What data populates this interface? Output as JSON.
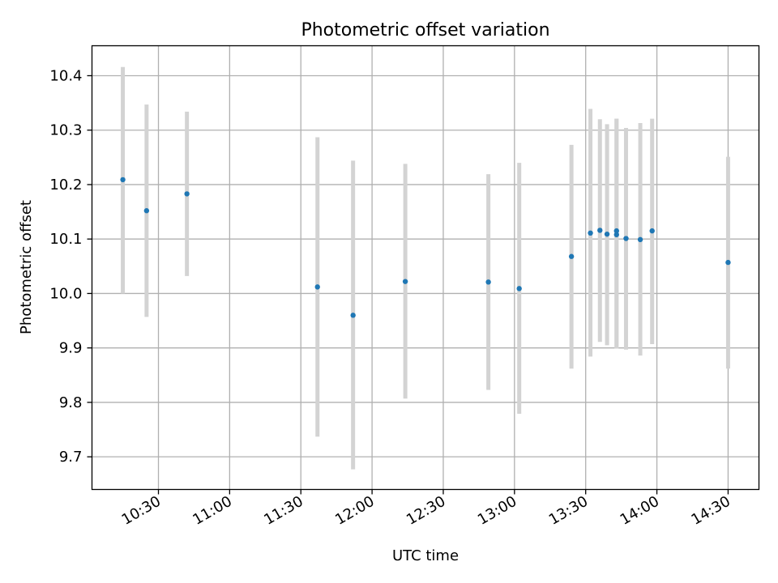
{
  "chart_data": {
    "type": "scatter",
    "title": "Photometric offset variation",
    "xlabel": "UTC time",
    "ylabel": "Photometric offset",
    "x_axis_type": "time",
    "xlim": [
      "10:02",
      "14:43"
    ],
    "ylim": [
      9.64,
      10.455
    ],
    "x_ticks": [
      "10:30",
      "11:00",
      "11:30",
      "12:00",
      "12:30",
      "13:00",
      "13:30",
      "14:00",
      "14:30"
    ],
    "y_ticks": [
      9.7,
      9.8,
      9.9,
      10.0,
      10.1,
      10.2,
      10.3,
      10.4
    ],
    "y_tick_labels": [
      "9.7",
      "9.8",
      "9.9",
      "10.0",
      "10.1",
      "10.2",
      "10.3",
      "10.4"
    ],
    "grid": true,
    "colors": {
      "marker": "#1f77b4",
      "errorbar": "#d3d3d3",
      "grid": "#b0b0b0"
    },
    "points": [
      {
        "time": "10:15",
        "y": 10.209,
        "y_low": 10.0,
        "y_high": 10.416
      },
      {
        "time": "10:25",
        "y": 10.152,
        "y_low": 9.957,
        "y_high": 10.347
      },
      {
        "time": "10:42",
        "y": 10.183,
        "y_low": 10.032,
        "y_high": 10.334
      },
      {
        "time": "11:37",
        "y": 10.012,
        "y_low": 9.737,
        "y_high": 10.287
      },
      {
        "time": "11:52",
        "y": 9.96,
        "y_low": 9.677,
        "y_high": 10.244
      },
      {
        "time": "12:14",
        "y": 10.022,
        "y_low": 9.807,
        "y_high": 10.238
      },
      {
        "time": "12:49",
        "y": 10.021,
        "y_low": 9.823,
        "y_high": 10.219
      },
      {
        "time": "13:02",
        "y": 10.009,
        "y_low": 9.779,
        "y_high": 10.24
      },
      {
        "time": "13:24",
        "y": 10.068,
        "y_low": 9.862,
        "y_high": 10.273
      },
      {
        "time": "13:32",
        "y": 10.111,
        "y_low": 9.884,
        "y_high": 10.339
      },
      {
        "time": "13:36",
        "y": 10.116,
        "y_low": 9.911,
        "y_high": 10.32
      },
      {
        "time": "13:39",
        "y": 10.109,
        "y_low": 9.905,
        "y_high": 10.311
      },
      {
        "time": "13:43",
        "y": 10.115,
        "y_low": 9.899,
        "y_high": 10.321
      },
      {
        "time": "13:43",
        "y": 10.108,
        "y_low": 9.899,
        "y_high": 10.321
      },
      {
        "time": "13:47",
        "y": 10.101,
        "y_low": 9.897,
        "y_high": 10.304
      },
      {
        "time": "13:53",
        "y": 10.099,
        "y_low": 9.886,
        "y_high": 10.313
      },
      {
        "time": "13:58",
        "y": 10.115,
        "y_low": 9.907,
        "y_high": 10.321
      },
      {
        "time": "14:30",
        "y": 10.057,
        "y_low": 9.862,
        "y_high": 10.251
      }
    ]
  }
}
